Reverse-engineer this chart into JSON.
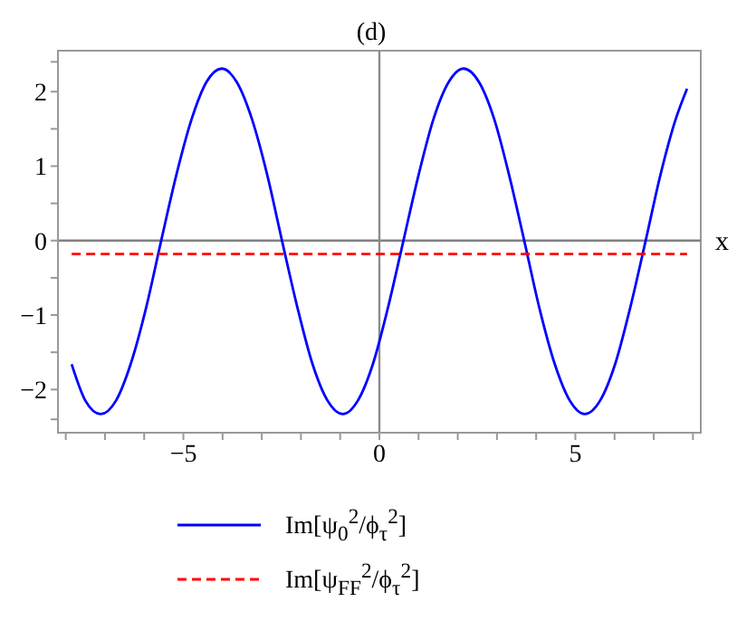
{
  "chart_data": {
    "type": "line",
    "title": "(d)",
    "xlabel": "x",
    "xlim": [
      -8.2,
      8.2
    ],
    "ylim": [
      -2.58,
      2.55
    ],
    "xticks": [
      {
        "value": -8,
        "label": null
      },
      {
        "value": -7,
        "label": null
      },
      {
        "value": -6,
        "label": null
      },
      {
        "value": -5,
        "label": "−5"
      },
      {
        "value": -4,
        "label": null
      },
      {
        "value": -3,
        "label": null
      },
      {
        "value": -2,
        "label": null
      },
      {
        "value": -1,
        "label": null
      },
      {
        "value": 0,
        "label": "0"
      },
      {
        "value": 1,
        "label": null
      },
      {
        "value": 2,
        "label": null
      },
      {
        "value": 3,
        "label": null
      },
      {
        "value": 4,
        "label": null
      },
      {
        "value": 5,
        "label": "5"
      },
      {
        "value": 6,
        "label": null
      },
      {
        "value": 7,
        "label": null
      },
      {
        "value": 8,
        "label": null
      }
    ],
    "yticks": [
      {
        "value": -2.4,
        "label": null
      },
      {
        "value": -2,
        "label": "−2"
      },
      {
        "value": -1.5,
        "label": null
      },
      {
        "value": -1,
        "label": "−1"
      },
      {
        "value": -0.5,
        "label": null
      },
      {
        "value": 0,
        "label": "0"
      },
      {
        "value": 0.5,
        "label": null
      },
      {
        "value": 1,
        "label": "1"
      },
      {
        "value": 1.5,
        "label": null
      },
      {
        "value": 2,
        "label": "2"
      },
      {
        "value": 2.4,
        "label": null
      }
    ],
    "grid": false,
    "legend": "bottom",
    "marker": "none",
    "ref_lines": [
      {
        "axis": "y",
        "value": 0,
        "color": "#808080",
        "line_style": "solid"
      },
      {
        "axis": "x",
        "value": 0,
        "color": "#8c8c8c",
        "line_style": "solid"
      }
    ],
    "series": [
      {
        "name": "Im[ψ$_{0}$$^{2}$/ϕ$_{τ}$$^{2}$]",
        "color": "#0000ff",
        "line_style": "solid",
        "x": [
          -7.85,
          -7.5,
          -7.11,
          -6.72,
          -6.34,
          -5.95,
          -5.57,
          -5.18,
          -4.79,
          -4.41,
          -4.02,
          -3.64,
          -3.25,
          -2.86,
          -2.48,
          -2.09,
          -1.71,
          -1.32,
          -0.93,
          -0.55,
          -0.16,
          0.22,
          0.61,
          1.0,
          1.38,
          1.77,
          2.15,
          2.54,
          2.93,
          3.31,
          3.7,
          4.08,
          4.47,
          4.86,
          5.24,
          5.63,
          6.02,
          6.4,
          6.79,
          7.17,
          7.56,
          7.85
        ],
        "values": [
          -1.66,
          -2.15,
          -2.33,
          -2.15,
          -1.65,
          -0.9,
          -0.01,
          0.88,
          1.63,
          2.13,
          2.31,
          2.13,
          1.63,
          0.88,
          -0.01,
          -0.9,
          -1.65,
          -2.15,
          -2.33,
          -2.15,
          -1.65,
          -0.9,
          -0.01,
          0.88,
          1.63,
          2.13,
          2.31,
          2.13,
          1.63,
          0.88,
          -0.01,
          -0.9,
          -1.65,
          -2.15,
          -2.33,
          -2.15,
          -1.65,
          -0.9,
          -0.01,
          0.88,
          1.63,
          2.04
        ]
      },
      {
        "name": "Im[ψ$_{FF}$$^{2}$/ϕ$_{τ}$$^{2}$]",
        "color": "#ff0000",
        "line_style": "dashed",
        "x": [
          -7.85,
          7.85
        ],
        "values": [
          -0.18,
          -0.18
        ]
      }
    ]
  }
}
